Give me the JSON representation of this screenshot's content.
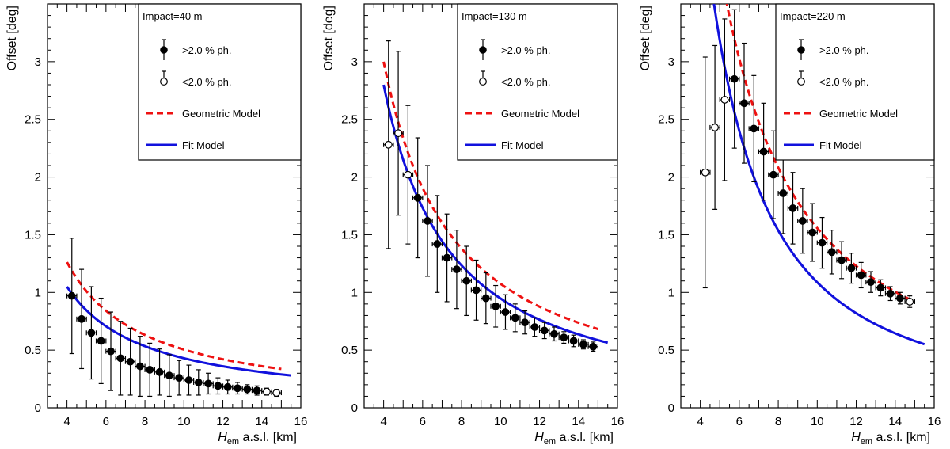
{
  "chart_data": {
    "type": "scatter",
    "ylabel": "Offset [deg]",
    "xlabel_main": "H",
    "xlabel_sub": "em",
    "xlabel_rest": " a.s.l. [km]",
    "xlim": [
      3,
      16
    ],
    "ylim": [
      0,
      3.5
    ],
    "xticks": [
      4,
      6,
      8,
      10,
      12,
      14,
      16
    ],
    "yticks": [
      0,
      0.5,
      1,
      1.5,
      2,
      2.5,
      3
    ],
    "legend": {
      "filled_label": ">2.0 % ph.",
      "open_label": "<2.0 % ph.",
      "geometric_label": "Geometric Model",
      "fit_label": "Fit Model"
    },
    "colors": {
      "geometric": "#ee1111",
      "fit": "#1111dd",
      "points": "#000000"
    },
    "panels": [
      {
        "title": "Impact=40 m",
        "points": [
          {
            "x": 4.25,
            "y": 0.97,
            "err": 0.5,
            "open": false
          },
          {
            "x": 4.75,
            "y": 0.77,
            "err": 0.43,
            "open": false
          },
          {
            "x": 5.25,
            "y": 0.65,
            "err": 0.4,
            "open": false
          },
          {
            "x": 5.75,
            "y": 0.58,
            "err": 0.37,
            "open": false
          },
          {
            "x": 6.25,
            "y": 0.49,
            "err": 0.34,
            "open": false
          },
          {
            "x": 6.75,
            "y": 0.43,
            "err": 0.32,
            "open": false
          },
          {
            "x": 7.25,
            "y": 0.4,
            "err": 0.29,
            "open": false
          },
          {
            "x": 7.75,
            "y": 0.36,
            "err": 0.26,
            "open": false
          },
          {
            "x": 8.25,
            "y": 0.33,
            "err": 0.23,
            "open": false
          },
          {
            "x": 8.75,
            "y": 0.31,
            "err": 0.2,
            "open": false
          },
          {
            "x": 9.25,
            "y": 0.28,
            "err": 0.18,
            "open": false
          },
          {
            "x": 9.75,
            "y": 0.26,
            "err": 0.15,
            "open": false
          },
          {
            "x": 10.25,
            "y": 0.24,
            "err": 0.13,
            "open": false
          },
          {
            "x": 10.75,
            "y": 0.22,
            "err": 0.11,
            "open": false
          },
          {
            "x": 11.25,
            "y": 0.21,
            "err": 0.09,
            "open": false
          },
          {
            "x": 11.75,
            "y": 0.19,
            "err": 0.07,
            "open": false
          },
          {
            "x": 12.25,
            "y": 0.18,
            "err": 0.06,
            "open": false
          },
          {
            "x": 12.75,
            "y": 0.17,
            "err": 0.05,
            "open": false
          },
          {
            "x": 13.25,
            "y": 0.16,
            "err": 0.04,
            "open": false
          },
          {
            "x": 13.75,
            "y": 0.15,
            "err": 0.04,
            "open": false
          },
          {
            "x": 14.25,
            "y": 0.14,
            "err": 0.03,
            "open": true
          },
          {
            "x": 14.75,
            "y": 0.13,
            "err": 0.03,
            "open": true
          }
        ],
        "geometric": {
          "a": 5.05,
          "b": 0.0,
          "x0": 4.0,
          "x1": 15.0
        },
        "fit": {
          "a": 4.2,
          "b": -0.1,
          "x0": 4.0,
          "x1": 15.5
        }
      },
      {
        "title": "Impact=130 m",
        "points": [
          {
            "x": 4.25,
            "y": 2.28,
            "err": 0.9,
            "open": true
          },
          {
            "x": 4.75,
            "y": 2.38,
            "err": 0.71,
            "open": true
          },
          {
            "x": 5.25,
            "y": 2.02,
            "err": 0.6,
            "open": true
          },
          {
            "x": 5.75,
            "y": 1.82,
            "err": 0.52,
            "open": false
          },
          {
            "x": 6.25,
            "y": 1.62,
            "err": 0.48,
            "open": false
          },
          {
            "x": 6.75,
            "y": 1.42,
            "err": 0.42,
            "open": false
          },
          {
            "x": 7.25,
            "y": 1.3,
            "err": 0.38,
            "open": false
          },
          {
            "x": 7.75,
            "y": 1.2,
            "err": 0.34,
            "open": false
          },
          {
            "x": 8.25,
            "y": 1.1,
            "err": 0.3,
            "open": false
          },
          {
            "x": 8.75,
            "y": 1.02,
            "err": 0.26,
            "open": false
          },
          {
            "x": 9.25,
            "y": 0.95,
            "err": 0.22,
            "open": false
          },
          {
            "x": 9.75,
            "y": 0.88,
            "err": 0.18,
            "open": false
          },
          {
            "x": 10.25,
            "y": 0.83,
            "err": 0.15,
            "open": false
          },
          {
            "x": 10.75,
            "y": 0.78,
            "err": 0.12,
            "open": false
          },
          {
            "x": 11.25,
            "y": 0.74,
            "err": 0.1,
            "open": false
          },
          {
            "x": 11.75,
            "y": 0.7,
            "err": 0.08,
            "open": false
          },
          {
            "x": 12.25,
            "y": 0.67,
            "err": 0.07,
            "open": false
          },
          {
            "x": 12.75,
            "y": 0.64,
            "err": 0.06,
            "open": false
          },
          {
            "x": 13.25,
            "y": 0.61,
            "err": 0.05,
            "open": false
          },
          {
            "x": 13.75,
            "y": 0.58,
            "err": 0.05,
            "open": false
          },
          {
            "x": 14.25,
            "y": 0.55,
            "err": 0.04,
            "open": false
          },
          {
            "x": 14.75,
            "y": 0.53,
            "err": 0.04,
            "open": false
          }
        ],
        "geometric": {
          "a": 12.0,
          "b": 0.48,
          "x0": 4.0,
          "x1": 15.0
        },
        "fit": {
          "a": 11.2,
          "b": 0.73,
          "x0": 4.0,
          "x1": 15.5
        }
      },
      {
        "title": "Impact=220 m",
        "points": [
          {
            "x": 4.25,
            "y": 2.04,
            "err": 1.0,
            "open": true
          },
          {
            "x": 4.75,
            "y": 2.43,
            "err": 0.71,
            "open": true
          },
          {
            "x": 5.25,
            "y": 2.67,
            "err": 0.7,
            "open": true
          },
          {
            "x": 5.75,
            "y": 2.85,
            "err": 0.6,
            "open": false
          },
          {
            "x": 6.25,
            "y": 2.64,
            "err": 0.52,
            "open": false
          },
          {
            "x": 6.75,
            "y": 2.42,
            "err": 0.46,
            "open": false
          },
          {
            "x": 7.25,
            "y": 2.22,
            "err": 0.42,
            "open": false
          },
          {
            "x": 7.75,
            "y": 2.02,
            "err": 0.38,
            "open": false
          },
          {
            "x": 8.25,
            "y": 1.86,
            "err": 0.35,
            "open": false
          },
          {
            "x": 8.75,
            "y": 1.73,
            "err": 0.31,
            "open": false
          },
          {
            "x": 9.25,
            "y": 1.62,
            "err": 0.28,
            "open": false
          },
          {
            "x": 9.75,
            "y": 1.52,
            "err": 0.25,
            "open": false
          },
          {
            "x": 10.25,
            "y": 1.43,
            "err": 0.22,
            "open": false
          },
          {
            "x": 10.75,
            "y": 1.35,
            "err": 0.19,
            "open": false
          },
          {
            "x": 11.25,
            "y": 1.28,
            "err": 0.16,
            "open": false
          },
          {
            "x": 11.75,
            "y": 1.21,
            "err": 0.13,
            "open": false
          },
          {
            "x": 12.25,
            "y": 1.15,
            "err": 0.11,
            "open": false
          },
          {
            "x": 12.75,
            "y": 1.09,
            "err": 0.09,
            "open": false
          },
          {
            "x": 13.25,
            "y": 1.04,
            "err": 0.07,
            "open": false
          },
          {
            "x": 13.75,
            "y": 0.99,
            "err": 0.06,
            "open": false
          },
          {
            "x": 14.25,
            "y": 0.95,
            "err": 0.05,
            "open": false
          },
          {
            "x": 14.75,
            "y": 0.92,
            "err": 0.05,
            "open": true
          }
        ],
        "geometric": {
          "a": 20.5,
          "b": 1.2,
          "x0": 4.0,
          "x1": 15.0
        },
        "fit": {
          "a": 18.0,
          "b": 2.2,
          "x0": 4.0,
          "x1": 15.5
        }
      }
    ]
  }
}
